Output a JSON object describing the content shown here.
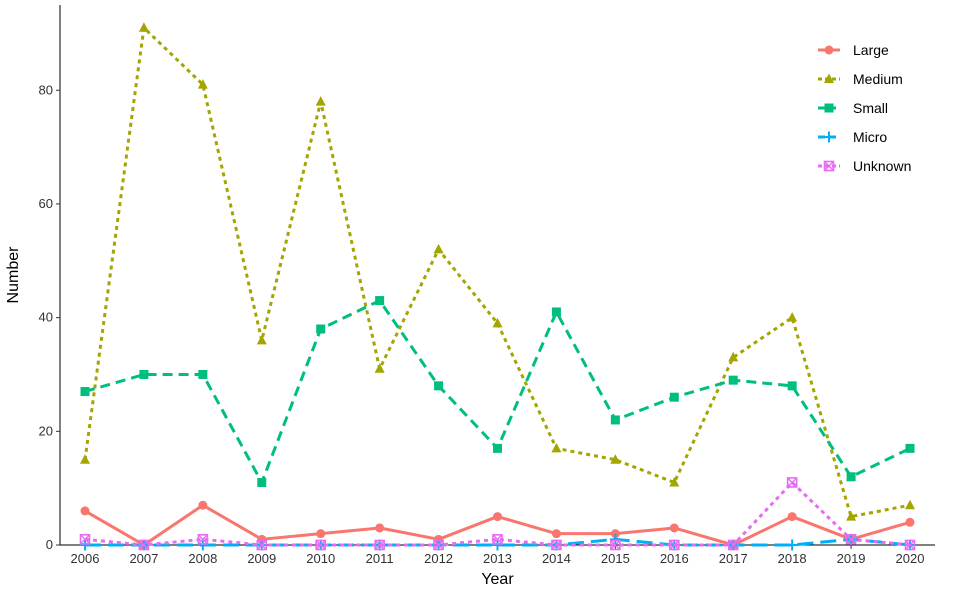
{
  "chart_data": {
    "type": "line",
    "xlabel": "Year",
    "ylabel": "Number",
    "x": [
      "2006",
      "2007",
      "2008",
      "2009",
      "2010",
      "2011",
      "2012",
      "2013",
      "2014",
      "2015",
      "2016",
      "2017",
      "2018",
      "2019",
      "2020"
    ],
    "ylim": [
      0,
      95
    ],
    "yticks": [
      0,
      20,
      40,
      60,
      80
    ],
    "grid": false,
    "legend_position": "top-right",
    "series": [
      {
        "name": "Large",
        "color": "#F8766D",
        "dash": "solid",
        "marker": "circle",
        "values": [
          6,
          0,
          7,
          1,
          2,
          3,
          1,
          5,
          2,
          2,
          3,
          0,
          5,
          1,
          4
        ]
      },
      {
        "name": "Medium",
        "color": "#A3A500",
        "dash": "dotted",
        "marker": "triangle",
        "values": [
          15,
          91,
          81,
          36,
          78,
          31,
          52,
          39,
          17,
          15,
          11,
          33,
          40,
          5,
          7
        ]
      },
      {
        "name": "Small",
        "color": "#00BF7D",
        "dash": "dashed",
        "marker": "square",
        "values": [
          27,
          30,
          30,
          11,
          38,
          43,
          28,
          17,
          41,
          22,
          26,
          29,
          28,
          12,
          17
        ]
      },
      {
        "name": "Micro",
        "color": "#00B0F6",
        "dash": "longdash",
        "marker": "plus",
        "values": [
          0,
          0,
          0,
          0,
          0,
          0,
          0,
          0,
          0,
          1,
          0,
          0,
          0,
          1,
          0
        ]
      },
      {
        "name": "Unknown",
        "color": "#E76BF3",
        "dash": "dotted",
        "marker": "boxcross",
        "values": [
          1,
          0,
          1,
          0,
          0,
          0,
          0,
          1,
          0,
          0,
          0,
          0,
          11,
          1,
          0
        ]
      }
    ]
  }
}
